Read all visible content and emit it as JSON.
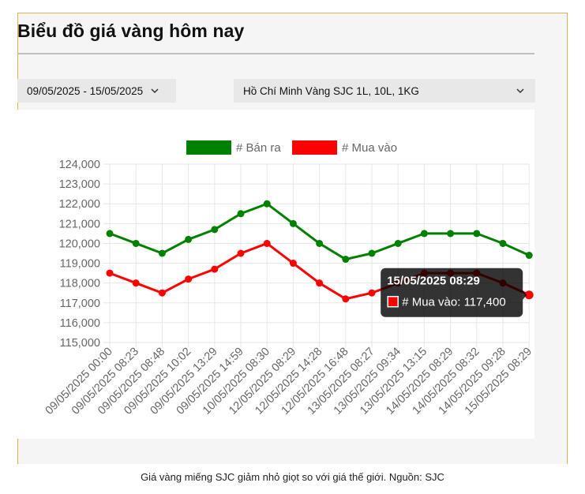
{
  "header": {
    "title": "Biểu đồ giá vàng hôm nay"
  },
  "filters": {
    "date_range": "09/05/2025 - 15/05/2025",
    "location": "Hồ Chí Minh Vàng SJC 1L, 10L, 1KG"
  },
  "chart_data": {
    "type": "line",
    "categories": [
      "09/05/2025 00:00",
      "09/05/2025 08:23",
      "09/05/2025 08:48",
      "09/05/2025 10:02",
      "09/05/2025 13:29",
      "09/05/2025 14:59",
      "10/05/2025 08:30",
      "12/05/2025 08:29",
      "12/05/2025 14:28",
      "12/05/2025 16:48",
      "13/05/2025 08:27",
      "13/05/2025 09:34",
      "13/05/2025 13:15",
      "14/05/2025 08:29",
      "14/05/2025 08:32",
      "14/05/2025 09:28",
      "15/05/2025 08:29"
    ],
    "series": [
      {
        "name": "# Bán ra",
        "color": "#008000",
        "values": [
          120500,
          120000,
          119500,
          120200,
          120700,
          121500,
          122000,
          121000,
          120000,
          119200,
          119500,
          120000,
          120500,
          120500,
          120500,
          120000,
          119400
        ]
      },
      {
        "name": "# Mua vào",
        "color": "#ff0000",
        "values": [
          118500,
          118000,
          117500,
          118200,
          118700,
          119500,
          120000,
          119000,
          118000,
          117200,
          117500,
          118000,
          118500,
          118500,
          118500,
          118000,
          117400
        ]
      }
    ],
    "y_ticks": [
      "124,000",
      "123,000",
      "122,000",
      "121,000",
      "120,000",
      "119,000",
      "118,000",
      "117,000",
      "116,000",
      "115,000"
    ],
    "ylim": [
      115000,
      124000
    ],
    "grid": true,
    "legend_position": "top",
    "tooltip": {
      "title": "15/05/2025 08:29",
      "label": "# Mua vào: 117,400",
      "series_index": 1,
      "point_index": 16
    }
  },
  "caption": "Giá vàng miếng SJC giảm nhỏ giọt so với giá thế giới. Nguồn: SJC"
}
